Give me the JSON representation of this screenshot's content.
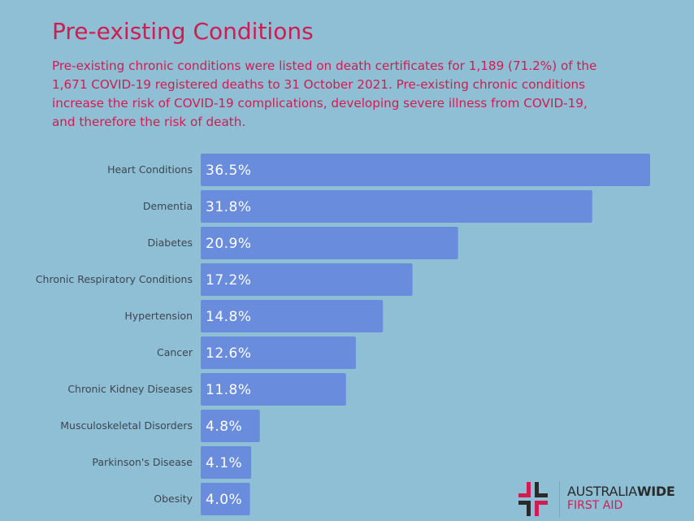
{
  "header": {
    "title": "Pre-existing Conditions",
    "subtitle": "Pre-existing chronic conditions were listed on death certificates for 1,189 (71.2%) of the 1,671 COVID-19 registered deaths to 31 October 2021. Pre-existing chronic conditions increase the risk of COVID-19 complications, developing severe illness from COVID-19, and therefore the risk of death."
  },
  "chart_data": {
    "type": "bar",
    "orientation": "horizontal",
    "categories": [
      "Heart Conditions",
      "Dementia",
      "Diabetes",
      "Chronic Respiratory Conditions",
      "Hypertension",
      "Cancer",
      "Chronic Kidney Diseases",
      "Musculoskeletal Disorders",
      "Parkinson's Disease",
      "Obesity"
    ],
    "values": [
      36.5,
      31.8,
      20.9,
      17.2,
      14.8,
      12.6,
      11.8,
      4.8,
      4.1,
      4.0
    ],
    "data_labels": [
      "36.5%",
      "31.8%",
      "20.9%",
      "17.2%",
      "14.8%",
      "12.6%",
      "11.8%",
      "4.8%",
      "4.1%",
      "4.0%"
    ],
    "unit": "%",
    "grid": false,
    "bar_color": "#6a8cdc"
  },
  "logo": {
    "line1_light": "AUSTRALIA",
    "line1_bold": "WIDE",
    "line2": "FIRST AID"
  },
  "colors": {
    "background": "#8fbfd4",
    "accent": "#cf1d52",
    "bar": "#6a8cdc"
  }
}
